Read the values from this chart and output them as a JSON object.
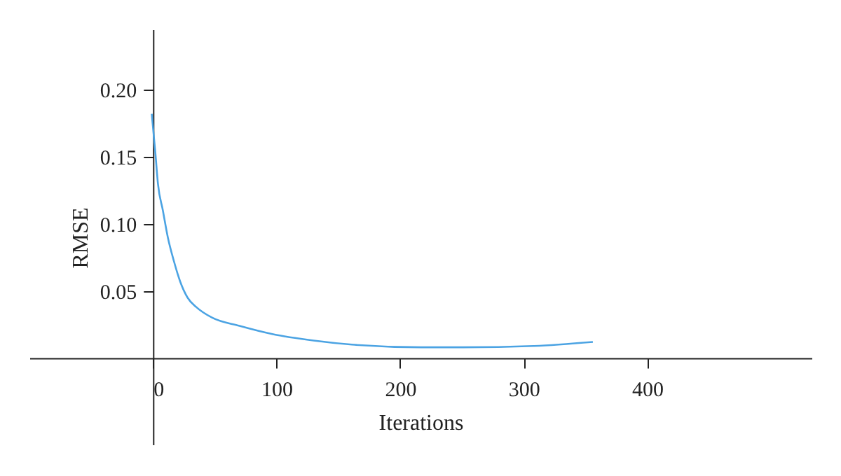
{
  "chart_data": {
    "type": "line",
    "xlabel": "Iterations",
    "ylabel": "RMSE",
    "x": [
      -1,
      2,
      4,
      8,
      12,
      17,
      22,
      28,
      35,
      48,
      70,
      96,
      130,
      161,
      217,
      251,
      308,
      356
    ],
    "series": [
      {
        "color": "#4ba3e3",
        "values": [
          0.182,
          0.152,
          0.13,
          0.11,
          0.09,
          0.072,
          0.057,
          0.045,
          0.038,
          0.03,
          0.024,
          0.018,
          0.013,
          0.01,
          0.008,
          0.008,
          0.009,
          0.012
        ]
      }
    ],
    "xlim": [
      -100,
      533
    ],
    "ylim": [
      -0.065,
      0.245
    ],
    "xticks": [
      0,
      100,
      200,
      300,
      400
    ],
    "yticks": [
      0.05,
      {
        "value": 0.1,
        "label": "0.10"
      },
      0.15,
      {
        "value": 0.2,
        "label": "0.20"
      }
    ],
    "grid": false,
    "marker": "none",
    "line_style": "solid"
  }
}
